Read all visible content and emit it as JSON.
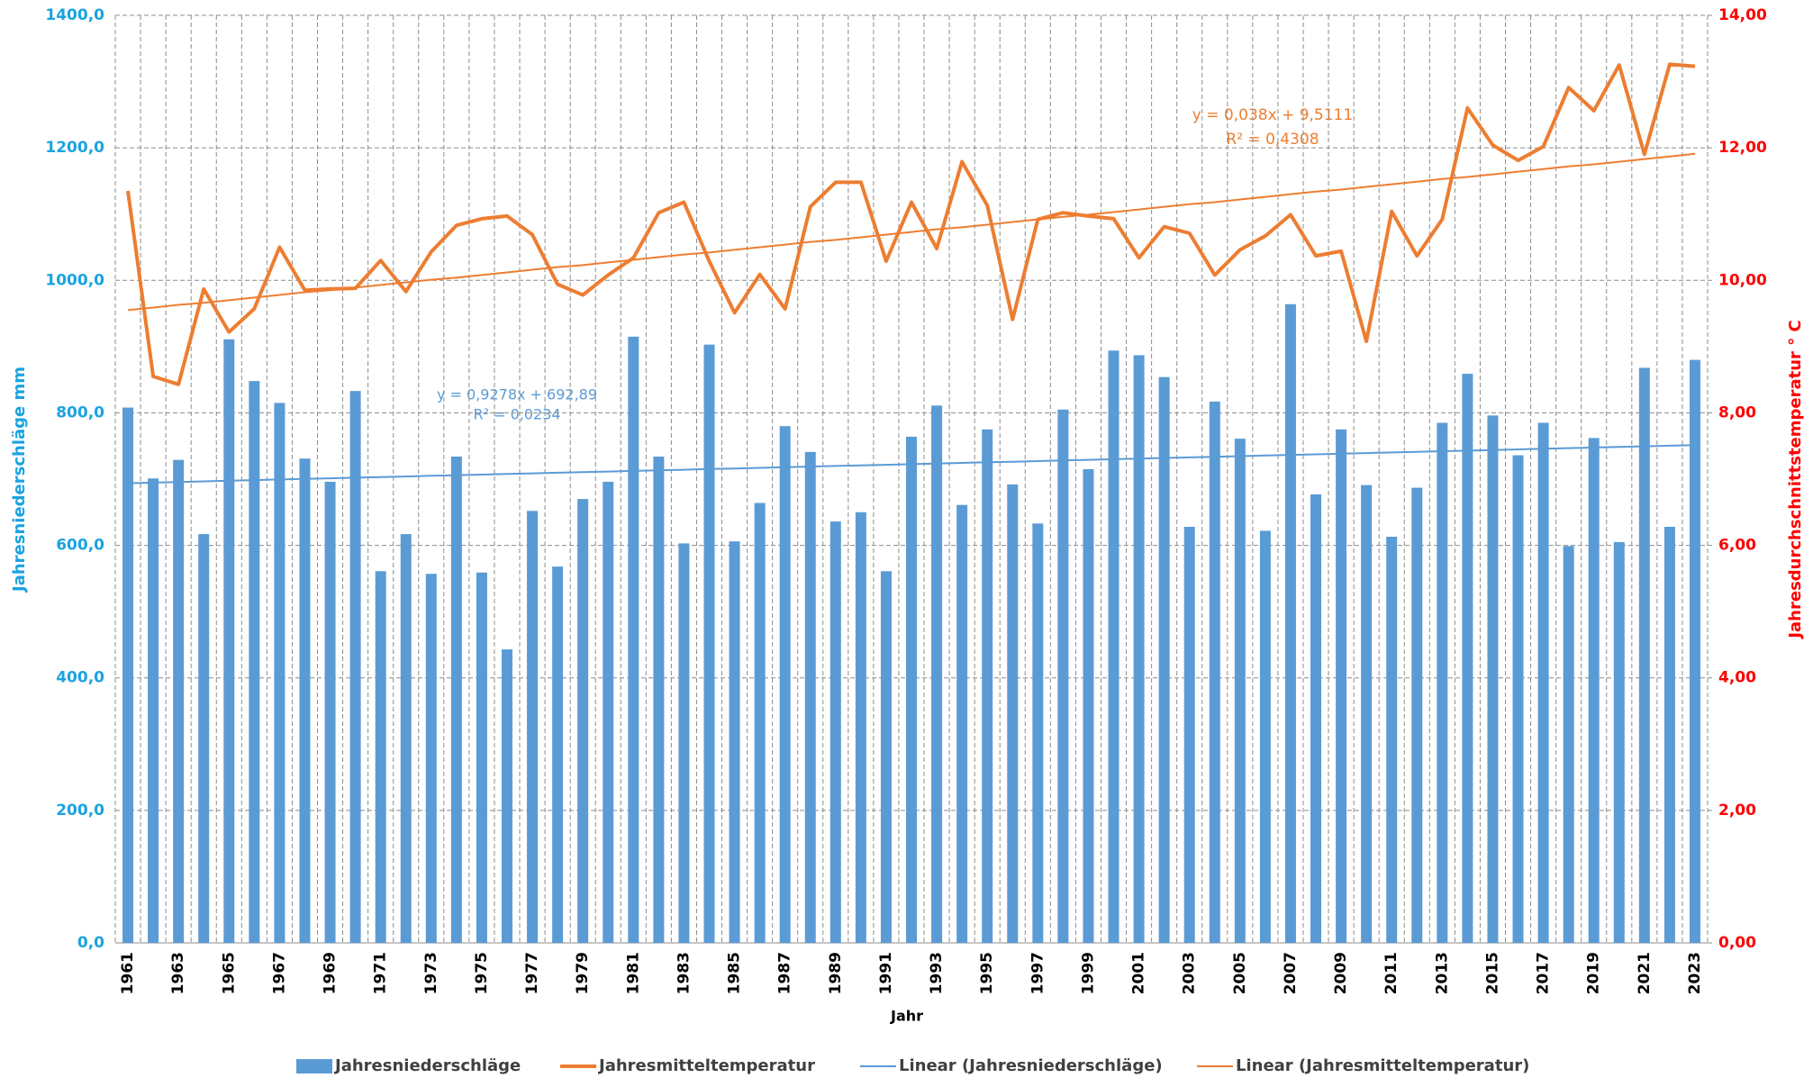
{
  "chart_data": {
    "type": "bar",
    "categories": [
      "1961",
      null,
      "1963",
      null,
      "1965",
      null,
      "1967",
      null,
      "1969",
      null,
      "1971",
      null,
      "1973",
      null,
      "1975",
      null,
      "1977",
      null,
      "1979",
      null,
      "1981",
      null,
      "1983",
      null,
      "1985",
      null,
      "1987",
      null,
      "1989",
      null,
      "1991",
      null,
      "1993",
      null,
      "1995",
      null,
      "1997",
      null,
      "1999",
      null,
      "2001",
      null,
      "2003",
      null,
      "2005",
      null,
      "2007",
      null,
      "2009",
      null,
      "2011",
      null,
      "2013",
      null,
      "2015",
      null,
      "2017",
      null,
      "2019",
      null,
      "2021",
      null,
      "2023"
    ],
    "x_label": "Jahr",
    "y_label": "Jahresniederschläge mm",
    "y2_label": "Jahresdurchschnittstemperatur ° C",
    "ylim": [
      0,
      1400
    ],
    "yticks": [
      {
        "value": 0,
        "label": "0,0"
      },
      {
        "value": 200,
        "label": "200,0"
      },
      {
        "value": 400,
        "label": "400,0"
      },
      {
        "value": 600,
        "label": "600,0"
      },
      {
        "value": 800,
        "label": "800,0"
      },
      {
        "value": 1000,
        "label": "1000,0"
      },
      {
        "value": 1200,
        "label": "1200,0"
      },
      {
        "value": 1400,
        "label": "1400,0"
      }
    ],
    "y2lim": [
      0,
      14
    ],
    "y2ticks": [
      {
        "value": 0,
        "label": "0,00"
      },
      {
        "value": 2,
        "label": "2,00"
      },
      {
        "value": 4,
        "label": "4,00"
      },
      {
        "value": 6,
        "label": "6,00"
      },
      {
        "value": 8,
        "label": "8,00"
      },
      {
        "value": 10,
        "label": "10,00"
      },
      {
        "value": 12,
        "label": "12,00"
      },
      {
        "value": 14,
        "label": "14,00"
      }
    ],
    "grid": true,
    "legend": "bottom",
    "y_color": "#1aa3e0",
    "y2_color": "#ff0000",
    "series": [
      {
        "name": "Jahresniederschläge",
        "type": "bar",
        "color": "#5b9bd5",
        "values": [
          808,
          701,
          729,
          617,
          911,
          848,
          815,
          731,
          696,
          833,
          561,
          617,
          557,
          734,
          559,
          443,
          652,
          568,
          670,
          696,
          915,
          734,
          603,
          903,
          606,
          664,
          780,
          741,
          636,
          650,
          561,
          764,
          811,
          661,
          775,
          692,
          633,
          805,
          715,
          894,
          887,
          854,
          628,
          817,
          761,
          622,
          964,
          677,
          775,
          691,
          613,
          687,
          785,
          859,
          796,
          736,
          785,
          599,
          762,
          605,
          868,
          628,
          880
        ]
      },
      {
        "name": "Jahresmitteltemperatur",
        "type": "line",
        "axis": "y2",
        "color": "#ed7d31",
        "values": [
          11.35,
          8.55,
          8.43,
          9.87,
          9.22,
          9.57,
          10.5,
          9.85,
          9.87,
          9.88,
          10.3,
          9.83,
          10.43,
          10.83,
          10.93,
          10.97,
          10.69,
          9.94,
          9.78,
          10.08,
          10.34,
          11.02,
          11.18,
          10.29,
          9.51,
          10.09,
          9.57,
          11.11,
          11.48,
          11.48,
          10.29,
          11.18,
          10.48,
          11.79,
          11.13,
          9.41,
          10.92,
          11.02,
          10.97,
          10.93,
          10.34,
          10.81,
          10.71,
          10.08,
          10.46,
          10.67,
          10.99,
          10.37,
          10.44,
          9.08,
          11.04,
          10.37,
          10.92,
          12.6,
          12.04,
          11.81,
          12.02,
          12.91,
          12.56,
          13.25,
          11.9,
          13.26,
          13.23
        ]
      },
      {
        "name": "Linear (Jahresniederschläge)",
        "type": "trend",
        "color": "#5b9bd5",
        "values": [
          693.8,
          694.7,
          695.7,
          696.6,
          697.5,
          698.5,
          699.4,
          700.3,
          701.2,
          702.2,
          703.1,
          704.0,
          705.0,
          705.9,
          706.8,
          707.7,
          708.7,
          709.6,
          710.5,
          711.4,
          712.4,
          713.3,
          714.2,
          715.2,
          716.1,
          717.0,
          717.9,
          718.9,
          719.8,
          720.7,
          721.6,
          722.6,
          723.5,
          724.4,
          725.4,
          726.3,
          727.2,
          728.1,
          729.1,
          730.0,
          730.9,
          731.9,
          732.8,
          733.7,
          734.6,
          735.6,
          736.5,
          737.4,
          738.4,
          739.3,
          740.2,
          741.1,
          742.1,
          743.0,
          743.9,
          744.8,
          745.8,
          746.7,
          747.6,
          748.6,
          749.5,
          750.4,
          751.3
        ]
      },
      {
        "name": "Linear (Jahresmitteltemperatur)",
        "type": "trend",
        "axis": "y2",
        "color": "#ed7d31",
        "values": [
          9.55,
          9.59,
          9.63,
          9.66,
          9.7,
          9.74,
          9.78,
          9.82,
          9.85,
          9.89,
          9.93,
          9.97,
          10.01,
          10.04,
          10.08,
          10.12,
          10.16,
          10.2,
          10.23,
          10.27,
          10.31,
          10.35,
          10.39,
          10.42,
          10.46,
          10.5,
          10.54,
          10.58,
          10.61,
          10.65,
          10.69,
          10.73,
          10.77,
          10.8,
          10.84,
          10.88,
          10.92,
          10.96,
          10.99,
          11.03,
          11.07,
          11.11,
          11.15,
          11.18,
          11.22,
          11.26,
          11.3,
          11.34,
          11.37,
          11.41,
          11.45,
          11.49,
          11.53,
          11.56,
          11.6,
          11.64,
          11.68,
          11.72,
          11.75,
          11.79,
          11.83,
          11.87,
          11.91
        ]
      }
    ],
    "annotations": [
      "y = 0,9278x + 692,89",
      "R² = 0,0234",
      "y = 0,038x + 9,5111",
      "R² = 0,4308"
    ]
  }
}
